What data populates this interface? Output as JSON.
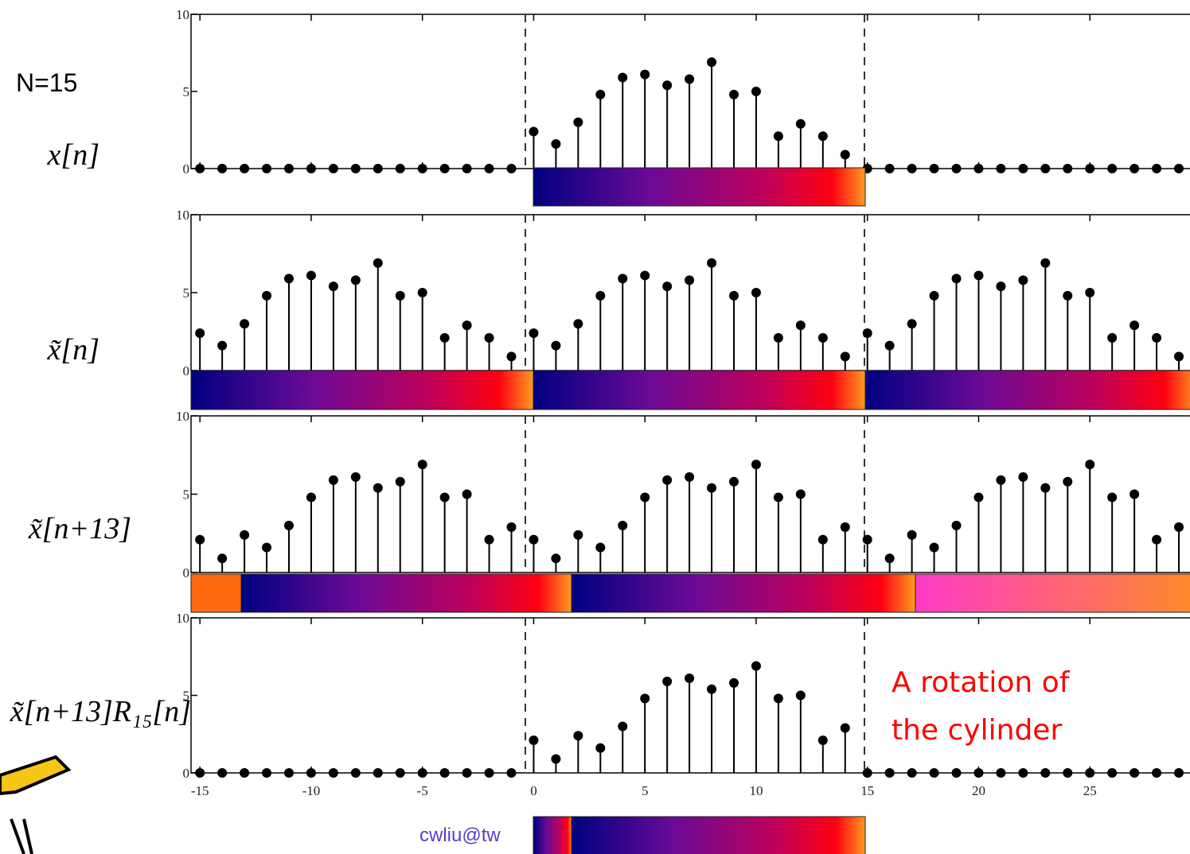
{
  "n_label": "N=15",
  "annotation": [
    "A rotation of",
    "the cylinder"
  ],
  "footer": "cwliu@tw",
  "chart_data": [
    {
      "type": "stem",
      "ylabel": "x[n]",
      "x": [
        -15,
        -14,
        -13,
        -12,
        -11,
        -10,
        -9,
        -8,
        -7,
        -6,
        -5,
        -4,
        -3,
        -2,
        -1,
        0,
        1,
        2,
        3,
        4,
        5,
        6,
        7,
        8,
        9,
        10,
        11,
        12,
        13,
        14,
        15,
        16,
        17,
        18,
        19,
        20,
        21,
        22,
        23,
        24,
        25,
        26,
        27,
        28,
        29
      ],
      "values": [
        0,
        0,
        0,
        0,
        0,
        0,
        0,
        0,
        0,
        0,
        0,
        0,
        0,
        0,
        0,
        2.4,
        1.6,
        3.0,
        4.8,
        5.9,
        6.1,
        5.4,
        5.8,
        6.9,
        4.8,
        5.0,
        2.1,
        2.9,
        2.1,
        0.9,
        0,
        0,
        0,
        0,
        0,
        0,
        0,
        0,
        0,
        0,
        0,
        0,
        0,
        0,
        0
      ],
      "color": "#000000",
      "ylim": [
        0,
        10
      ],
      "yticks": [
        0,
        5,
        10
      ],
      "xlim": [
        -15.4,
        29.5
      ]
    },
    {
      "type": "stem",
      "ylabel": "x̃[n]",
      "x": [
        -15,
        -14,
        -13,
        -12,
        -11,
        -10,
        -9,
        -8,
        -7,
        -6,
        -5,
        -4,
        -3,
        -2,
        -1,
        0,
        1,
        2,
        3,
        4,
        5,
        6,
        7,
        8,
        9,
        10,
        11,
        12,
        13,
        14,
        15,
        16,
        17,
        18,
        19,
        20,
        21,
        22,
        23,
        24,
        25,
        26,
        27,
        28,
        29
      ],
      "values": [
        2.4,
        1.6,
        3.0,
        4.8,
        5.9,
        6.1,
        5.4,
        5.8,
        6.9,
        4.8,
        5.0,
        2.1,
        2.9,
        2.1,
        0.9,
        2.4,
        1.6,
        3.0,
        4.8,
        5.9,
        6.1,
        5.4,
        5.8,
        6.9,
        4.8,
        5.0,
        2.1,
        2.9,
        2.1,
        0.9,
        2.4,
        1.6,
        3.0,
        4.8,
        5.9,
        6.1,
        5.4,
        5.8,
        6.9,
        4.8,
        5.0,
        2.1,
        2.9,
        2.1,
        0.9
      ],
      "color": "#000000",
      "ylim": [
        0,
        10
      ],
      "yticks": [
        0,
        5,
        10
      ],
      "xlim": [
        -15.4,
        29.5
      ]
    },
    {
      "type": "stem",
      "ylabel": "x̃[n+13]",
      "x": [
        -15,
        -14,
        -13,
        -12,
        -11,
        -10,
        -9,
        -8,
        -7,
        -6,
        -5,
        -4,
        -3,
        -2,
        -1,
        0,
        1,
        2,
        3,
        4,
        5,
        6,
        7,
        8,
        9,
        10,
        11,
        12,
        13,
        14,
        15,
        16,
        17,
        18,
        19,
        20,
        21,
        22,
        23,
        24,
        25,
        26,
        27,
        28,
        29
      ],
      "values": [
        2.1,
        0.9,
        2.4,
        1.6,
        3.0,
        4.8,
        5.9,
        6.1,
        5.4,
        5.8,
        6.9,
        4.8,
        5.0,
        2.1,
        2.9,
        2.1,
        0.9,
        2.4,
        1.6,
        3.0,
        4.8,
        5.9,
        6.1,
        5.4,
        5.8,
        6.9,
        4.8,
        5.0,
        2.1,
        2.9,
        2.1,
        0.9,
        2.4,
        1.6,
        3.0,
        4.8,
        5.9,
        6.1,
        5.4,
        5.8,
        6.9,
        4.8,
        5.0,
        2.1,
        2.9
      ],
      "color": "#000000",
      "ylim": [
        0,
        10
      ],
      "yticks": [
        0,
        5,
        10
      ],
      "xlim": [
        -15.4,
        29.5
      ]
    },
    {
      "type": "stem",
      "ylabel": "x̃[n+13]R₁₅[n]",
      "x": [
        -15,
        -14,
        -13,
        -12,
        -11,
        -10,
        -9,
        -8,
        -7,
        -6,
        -5,
        -4,
        -3,
        -2,
        -1,
        0,
        1,
        2,
        3,
        4,
        5,
        6,
        7,
        8,
        9,
        10,
        11,
        12,
        13,
        14,
        15,
        16,
        17,
        18,
        19,
        20,
        21,
        22,
        23,
        24,
        25,
        26,
        27,
        28,
        29
      ],
      "values": [
        0,
        0,
        0,
        0,
        0,
        0,
        0,
        0,
        0,
        0,
        0,
        0,
        0,
        0,
        0,
        2.1,
        0.9,
        2.4,
        1.6,
        3.0,
        4.8,
        5.9,
        6.1,
        5.4,
        5.8,
        6.9,
        4.8,
        5.0,
        2.1,
        2.9,
        0,
        0,
        0,
        0,
        0,
        0,
        0,
        0,
        0,
        0,
        0,
        0,
        0,
        0,
        0
      ],
      "color": "#000000",
      "ylim": [
        0,
        10
      ],
      "yticks": [
        0,
        5,
        10
      ],
      "xlim": [
        -15.4,
        29.5
      ],
      "xticks": [
        -15,
        -10,
        -5,
        0,
        5,
        10,
        15,
        20,
        25
      ]
    }
  ]
}
